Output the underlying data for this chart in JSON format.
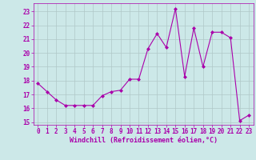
{
  "x": [
    0,
    1,
    2,
    3,
    4,
    5,
    6,
    7,
    8,
    9,
    10,
    11,
    12,
    13,
    14,
    15,
    16,
    17,
    18,
    19,
    20,
    21,
    22,
    23
  ],
  "y": [
    17.8,
    17.2,
    16.6,
    16.2,
    16.2,
    16.2,
    16.2,
    16.9,
    17.2,
    17.3,
    18.1,
    18.1,
    20.3,
    21.4,
    20.4,
    23.2,
    18.3,
    21.8,
    19.0,
    21.5,
    21.5,
    21.1,
    15.1,
    15.5
  ],
  "line_color": "#aa00aa",
  "marker": "D",
  "marker_size": 2.0,
  "bg_color": "#cce8e8",
  "grid_color": "#b0c8c8",
  "xlabel": "Windchill (Refroidissement éolien,°C)",
  "ylim": [
    14.8,
    23.6
  ],
  "xlim": [
    -0.5,
    23.5
  ],
  "yticks": [
    15,
    16,
    17,
    18,
    19,
    20,
    21,
    22,
    23
  ],
  "xticks": [
    0,
    1,
    2,
    3,
    4,
    5,
    6,
    7,
    8,
    9,
    10,
    11,
    12,
    13,
    14,
    15,
    16,
    17,
    18,
    19,
    20,
    21,
    22,
    23
  ],
  "font_color": "#aa00aa",
  "label_fontsize": 6.0,
  "tick_fontsize": 5.5
}
